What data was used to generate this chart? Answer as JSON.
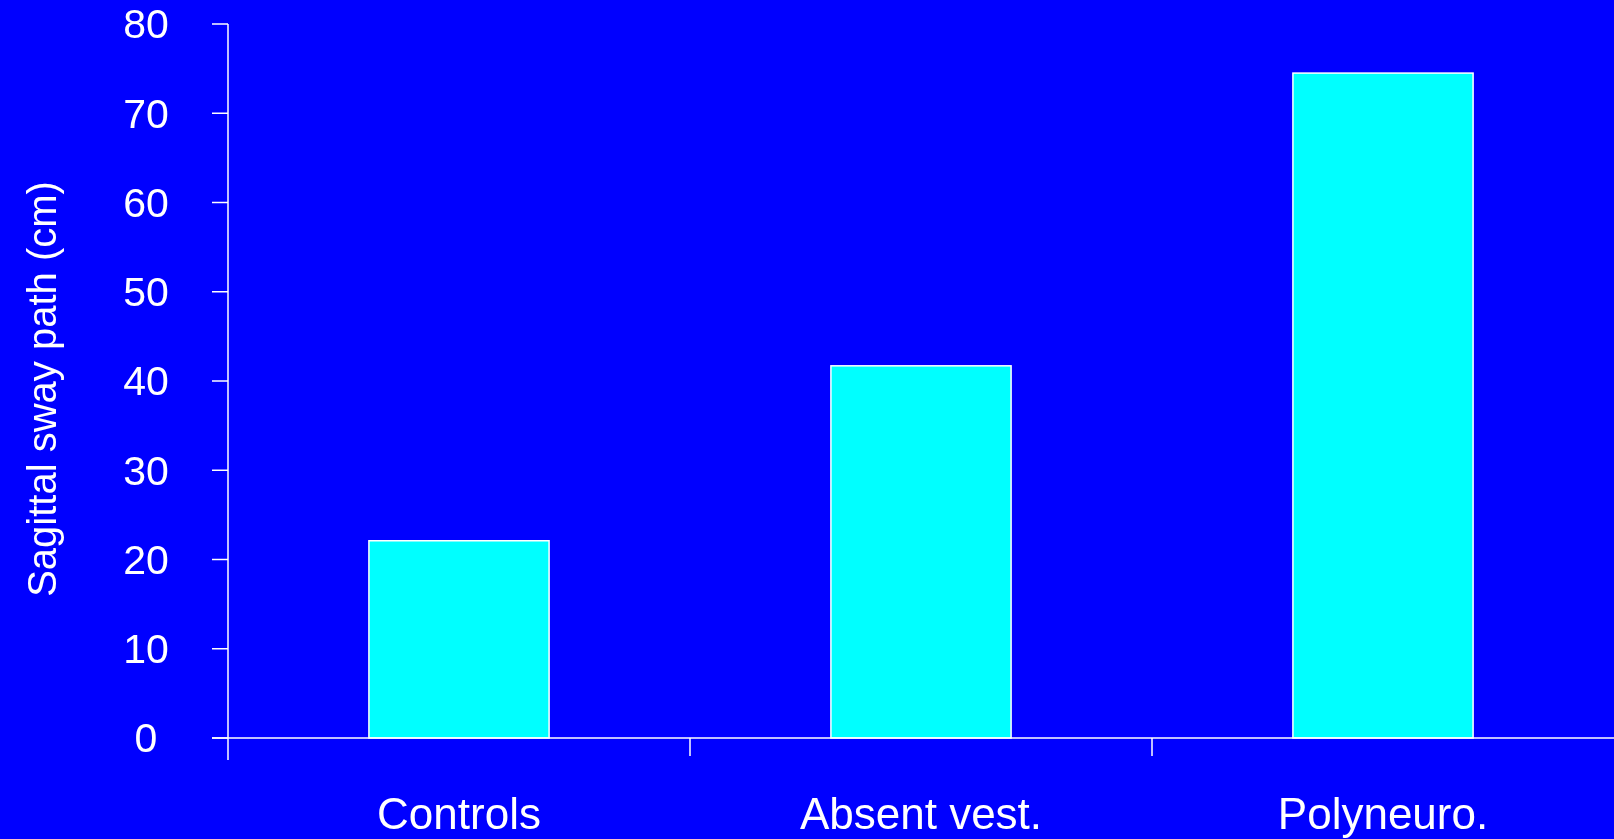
{
  "chart_data": {
    "type": "bar",
    "ylabel": "Sagittal sway path (cm)",
    "categories": [
      "Controls",
      "Absent vest.",
      "Polyneuro."
    ],
    "values": [
      22.1,
      41.7,
      74.5
    ],
    "color": "#00ffff",
    "ylim": [
      0,
      80
    ],
    "yticks": [
      0,
      10,
      20,
      30,
      40,
      50,
      60,
      70,
      80
    ]
  }
}
